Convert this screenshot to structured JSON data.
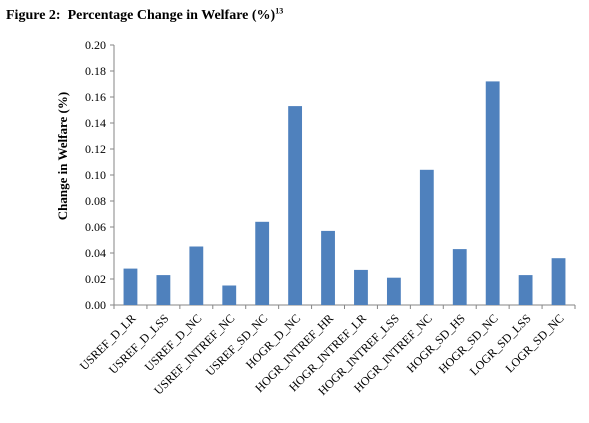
{
  "figure": {
    "label": "Figure 2:",
    "title": "Percentage Change in Welfare (%)",
    "footnote": "13"
  },
  "chart_data": {
    "type": "bar",
    "title": "Percentage Change in Welfare (%)",
    "ylabel": "Change in Welfare (%)",
    "xlabel": "",
    "ylim": [
      0,
      0.2
    ],
    "yticks": [
      "0.00",
      "0.02",
      "0.04",
      "0.06",
      "0.08",
      "0.10",
      "0.12",
      "0.14",
      "0.16",
      "0.18",
      "0.20"
    ],
    "grid": false,
    "legend": "none",
    "bar_color": "#4F81BD",
    "categories": [
      "USREF_D_LR",
      "USREF_D_LSS",
      "USREF_D_NC",
      "USREF_INTREF_NC",
      "USREF_SD_NC",
      "HOGR_D_NC",
      "HOGR_INTREF_HR",
      "HOGR_INTREF_LR",
      "HOGR_INTREF_LSS",
      "HOGR_INTREF_NC",
      "HOGR_SD_HS",
      "HOGR_SD_NC",
      "LOGR_SD_LSS",
      "LOGR_SD_NC"
    ],
    "values": [
      0.028,
      0.023,
      0.045,
      0.015,
      0.064,
      0.153,
      0.057,
      0.027,
      0.021,
      0.104,
      0.043,
      0.172,
      0.023,
      0.036
    ]
  }
}
